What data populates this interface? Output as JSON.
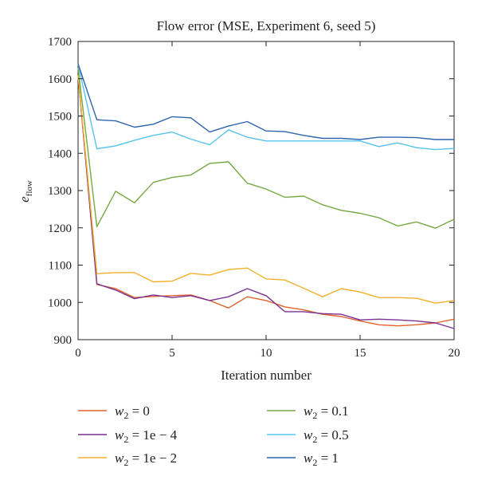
{
  "chart_data": {
    "type": "line",
    "title": "Flow error (MSE, Experiment 6, seed 5)",
    "xlabel": "Iteration number",
    "ylabel_main": "e",
    "ylabel_sub": "flow",
    "xlim": [
      0,
      20
    ],
    "ylim": [
      900,
      1700
    ],
    "xticks": [
      0,
      5,
      10,
      15,
      20
    ],
    "yticks": [
      900,
      1000,
      1100,
      1200,
      1300,
      1400,
      1500,
      1600,
      1700
    ],
    "grid": false,
    "legend_position": "bottom",
    "x": [
      0,
      1,
      2,
      3,
      4,
      5,
      6,
      7,
      8,
      9,
      10,
      11,
      12,
      13,
      14,
      15,
      16,
      17,
      18,
      19,
      20
    ],
    "series": [
      {
        "name": "w2 = 0",
        "label_var": "w",
        "label_sub": "2",
        "label_val": " = 0",
        "color": "#e0622a",
        "values": [
          1610,
          1048,
          1037,
          1013,
          1016,
          1018,
          1020,
          1005,
          985,
          1015,
          1005,
          988,
          980,
          968,
          962,
          950,
          940,
          937,
          940,
          945,
          955
        ]
      },
      {
        "name": "w2 = 1e - 4",
        "label_var": "w",
        "label_sub": "2",
        "label_val": " = 1e − 4",
        "color": "#7a3191",
        "values": [
          1610,
          1050,
          1033,
          1010,
          1020,
          1013,
          1018,
          1005,
          1015,
          1037,
          1018,
          975,
          975,
          970,
          968,
          953,
          955,
          953,
          950,
          945,
          930
        ]
      },
      {
        "name": "w2 = 1e - 2",
        "label_var": "w",
        "label_sub": "2",
        "label_val": " = 1e − 2",
        "color": "#f2b12b",
        "values": [
          1610,
          1077,
          1080,
          1080,
          1055,
          1057,
          1078,
          1073,
          1088,
          1092,
          1063,
          1060,
          1038,
          1015,
          1037,
          1028,
          1013,
          1013,
          1011,
          998,
          1005
        ]
      },
      {
        "name": "w2 = 0.1",
        "label_var": "w",
        "label_sub": "2",
        "label_val": " = 0.1",
        "color": "#77a844",
        "values": [
          1630,
          1203,
          1298,
          1267,
          1322,
          1335,
          1342,
          1373,
          1377,
          1320,
          1304,
          1282,
          1285,
          1262,
          1247,
          1239,
          1227,
          1205,
          1216,
          1199,
          1223
        ]
      },
      {
        "name": "w2 = 0.5",
        "label_var": "w",
        "label_sub": "2",
        "label_val": " = 0.5",
        "color": "#56c3ee",
        "values": [
          1640,
          1412,
          1420,
          1435,
          1448,
          1457,
          1438,
          1423,
          1463,
          1443,
          1433,
          1433,
          1433,
          1433,
          1433,
          1433,
          1418,
          1428,
          1415,
          1410,
          1413
        ]
      },
      {
        "name": "w2 = 1",
        "label_var": "w",
        "label_sub": "2",
        "label_val": " = 1",
        "color": "#2f64ac",
        "values": [
          1640,
          1490,
          1487,
          1470,
          1478,
          1498,
          1495,
          1457,
          1473,
          1485,
          1460,
          1458,
          1448,
          1440,
          1440,
          1437,
          1443,
          1443,
          1442,
          1437,
          1437
        ]
      }
    ]
  }
}
